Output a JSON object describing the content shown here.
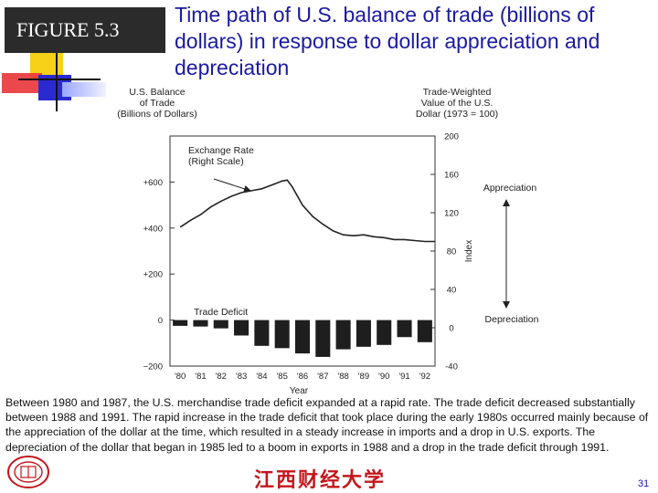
{
  "slide": {
    "figure_label": "FIGURE 5.3",
    "title": "Time path of U.S. balance of trade (billions of dollars) in response to dollar appreciation and depreciation",
    "caption": "Between 1980 and 1987, the U.S. merchandise trade deficit expanded at a rapid rate. The trade deficit decreased substantially between 1988 and 1991. The rapid increase in the trade deficit that took place during the early 1980s occurred mainly because of the appreciation of the dollar at the time, which resulted in a steady increase in imports and a drop in U.S. exports. The depreciation of the dollar that began in 1985 led to a boom in exports in 1988 and a drop in the trade deficit through 1991.",
    "university_name": "江西财经大学",
    "page_number": "31",
    "colors": {
      "title": "#1a1aa0",
      "university": "#c4161c",
      "accent_yellow": "#f7d117",
      "accent_red": "#e8343a",
      "accent_blue": "#2a2ad0"
    }
  },
  "chart_data": {
    "type": "line+bar",
    "left_axis_title": [
      "U.S. Balance",
      "of Trade",
      "(Billions of Dollars)"
    ],
    "right_axis_title": [
      "Trade-Weighted",
      "Value of the U.S.",
      "Dollar (1973 = 100)"
    ],
    "right_axis_side_label": "Index",
    "xlabel": "Year",
    "categories": [
      "'80",
      "'81",
      "'82",
      "'83",
      "'84",
      "'85",
      "'86",
      "'87",
      "'88",
      "'89",
      "'90",
      "'91",
      "'92"
    ],
    "left_ticks": [
      {
        "label": "+600",
        "value": 600
      },
      {
        "label": "+400",
        "value": 400
      },
      {
        "label": "+200",
        "value": 200
      },
      {
        "label": "0",
        "value": 0
      },
      {
        "label": "−200",
        "value": -200
      }
    ],
    "right_ticks": [
      200,
      160,
      120,
      80,
      40,
      0,
      -40
    ],
    "left_ylim": [
      -200,
      800
    ],
    "right_ylim": [
      -40,
      200
    ],
    "series": [
      {
        "name": "Exchange Rate",
        "label_lines": [
          "Exchange Rate",
          "(Right Scale)"
        ],
        "axis": "right",
        "style": "line",
        "x": [
          1980.0,
          1980.5,
          1981.0,
          1981.5,
          1982.0,
          1982.5,
          1983.0,
          1983.5,
          1984.0,
          1984.5,
          1985.0,
          1985.25,
          1985.5,
          1986.0,
          1986.5,
          1987.0,
          1987.5,
          1988.0,
          1988.5,
          1989.0,
          1989.5,
          1990.0,
          1990.5,
          1991.0,
          1991.5,
          1992.0,
          1992.5
        ],
        "values": [
          105,
          112,
          118,
          126,
          132,
          137,
          141,
          143,
          145,
          149,
          153,
          154,
          147,
          128,
          116,
          108,
          101,
          97,
          96,
          97,
          95,
          94,
          92,
          92,
          91,
          90,
          90
        ]
      },
      {
        "name": "Trade Deficit",
        "label_lines": [
          "Trade Deficit"
        ],
        "axis": "left",
        "style": "bar",
        "values": [
          -25,
          -28,
          -36,
          -67,
          -112,
          -122,
          -145,
          -160,
          -127,
          -116,
          -108,
          -74,
          -96
        ]
      }
    ],
    "annotations": {
      "upper_arrow_label": "Appreciation",
      "lower_arrow_label": "Depreciation"
    }
  }
}
